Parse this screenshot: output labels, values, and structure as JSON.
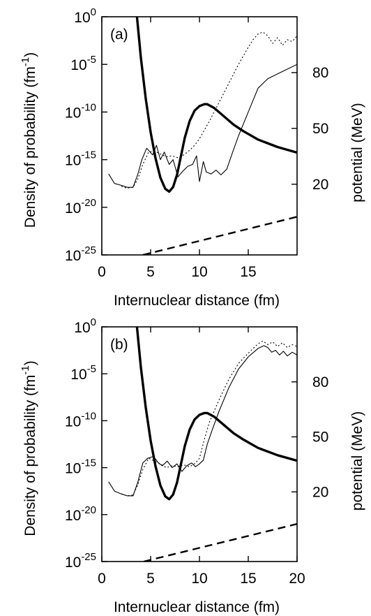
{
  "chart_data": [
    {
      "type": "line",
      "panel_label": "(a)",
      "xlabel": "Internuclear distance (fm)",
      "ylabel_left": "Density of probability (fm-1)",
      "ylabel_right": "potential (MeV)",
      "xlim": [
        0,
        20
      ],
      "ylim_left": [
        -25,
        0
      ],
      "ylim_right": [
        -18,
        110
      ],
      "y_left_scale": "log10",
      "x_ticks": [
        0,
        5,
        10,
        15
      ],
      "x_tick_labels": [
        "0",
        "5",
        "10",
        "15"
      ],
      "y_left_ticks": [
        0,
        -5,
        -10,
        -15,
        -20,
        -25
      ],
      "y_left_tick_labels": [
        {
          "base": "10",
          "exp": "0"
        },
        {
          "base": "10",
          "exp": "-5"
        },
        {
          "base": "10",
          "exp": "-10"
        },
        {
          "base": "10",
          "exp": "-15"
        },
        {
          "base": "10",
          "exp": "-20"
        },
        {
          "base": "10",
          "exp": "-25"
        }
      ],
      "y_right_ticks": [
        20,
        50,
        80
      ],
      "y_right_tick_labels": [
        "20",
        "50",
        "80"
      ],
      "series": [
        {
          "style": "thick",
          "axis": "right",
          "x": [
            3.6,
            4.0,
            4.5,
            5.0,
            5.5,
            6.0,
            6.5,
            6.9,
            7.3,
            7.7,
            8.1,
            8.5,
            9.0,
            9.5,
            10.0,
            10.5,
            10.8,
            11.5,
            12.5,
            13.5,
            14.5,
            16.0,
            18.0,
            20.0
          ],
          "y": [
            110,
            88,
            66,
            48,
            34,
            23.5,
            17.5,
            16,
            18.5,
            25,
            35,
            45,
            54,
            59.5,
            62,
            63,
            63,
            61,
            56.5,
            52,
            48.5,
            44,
            40,
            37
          ]
        },
        {
          "style": "thin",
          "axis": "left",
          "x": [
            0.7,
            1.3,
            2.0,
            2.6,
            3.2,
            3.7,
            4.1,
            4.6,
            5.2,
            5.6,
            6.0,
            6.4,
            6.9,
            7.3,
            7.8,
            8.3,
            8.8,
            9.3,
            9.7,
            10.0,
            10.4,
            10.7,
            11.2,
            11.7,
            12.2,
            12.8,
            13.3,
            14.0,
            15.0,
            16.0,
            17.0,
            18.0,
            19.0,
            20.0
          ],
          "y": [
            -16.5,
            -17.5,
            -17.7,
            -17.9,
            -17.9,
            -16.5,
            -15,
            -13.8,
            -14.5,
            -13.5,
            -15,
            -14.2,
            -15.5,
            -15,
            -16.8,
            -16.2,
            -15.7,
            -15.5,
            -14.6,
            -17.3,
            -15.2,
            -16.3,
            -16.5,
            -16.1,
            -16.6,
            -16,
            -14.5,
            -12.5,
            -10,
            -7.5,
            -6.5,
            -6,
            -5.5,
            -5
          ]
        },
        {
          "style": "dotted",
          "axis": "left",
          "x": [
            2.0,
            2.6,
            3.2,
            3.7,
            4.2,
            4.8,
            5.4,
            6.0,
            6.6,
            7.2,
            7.8,
            8.4,
            9.0,
            9.5,
            10.0,
            11.0,
            12.0,
            13.0,
            14.0,
            15.0,
            15.5,
            16.0,
            16.5,
            17.0,
            17.5,
            18.0,
            18.5,
            19.0,
            19.5,
            20.0
          ],
          "y": [
            -17.8,
            -18.0,
            -17.9,
            -17.0,
            -15.5,
            -14.2,
            -14.1,
            -14.4,
            -14.7,
            -14.6,
            -14.8,
            -14.5,
            -14.0,
            -13.5,
            -12.8,
            -11,
            -9,
            -7,
            -5,
            -3.2,
            -2.4,
            -1.8,
            -1.6,
            -2.0,
            -2.8,
            -2.2,
            -3.0,
            -2.4,
            -2.6,
            -2.0
          ]
        },
        {
          "style": "dashed",
          "axis": "left",
          "x": [
            4.2,
            20.0
          ],
          "y": [
            -25,
            -21
          ]
        }
      ]
    },
    {
      "type": "line",
      "panel_label": "(b)",
      "xlabel": "Internuclear distance (fm)",
      "ylabel_left": "Density of probability (fm-1)",
      "ylabel_right": "potential (MeV)",
      "xlim": [
        0,
        20
      ],
      "ylim_left": [
        -25,
        0
      ],
      "ylim_right": [
        -18,
        110
      ],
      "y_left_scale": "log10",
      "x_ticks": [
        0,
        5,
        10,
        15,
        20
      ],
      "x_tick_labels": [
        "0",
        "5",
        "10",
        "15",
        "20"
      ],
      "y_left_ticks": [
        0,
        -5,
        -10,
        -15,
        -20,
        -25
      ],
      "y_left_tick_labels": [
        {
          "base": "10",
          "exp": "0"
        },
        {
          "base": "10",
          "exp": "-5"
        },
        {
          "base": "10",
          "exp": "-10"
        },
        {
          "base": "10",
          "exp": "-15"
        },
        {
          "base": "10",
          "exp": "-20"
        },
        {
          "base": "10",
          "exp": "-25"
        }
      ],
      "y_right_ticks": [
        20,
        50,
        80
      ],
      "y_right_tick_labels": [
        "20",
        "50",
        "80"
      ],
      "series": [
        {
          "style": "thick",
          "axis": "right",
          "x": [
            3.6,
            4.0,
            4.5,
            5.0,
            5.5,
            6.0,
            6.5,
            6.9,
            7.3,
            7.7,
            8.1,
            8.5,
            9.0,
            9.5,
            10.0,
            10.5,
            10.8,
            11.5,
            12.5,
            13.5,
            14.5,
            16.0,
            18.0,
            20.0
          ],
          "y": [
            110,
            88,
            66,
            48,
            34,
            23.5,
            17.5,
            16,
            18.5,
            25,
            35,
            45,
            54,
            59.5,
            62,
            63,
            63,
            61,
            56.5,
            52,
            48.5,
            44,
            40,
            37
          ]
        },
        {
          "style": "thin",
          "axis": "left",
          "x": [
            0.7,
            1.3,
            2.0,
            2.6,
            3.2,
            3.7,
            4.2,
            4.7,
            5.3,
            5.8,
            6.2,
            6.7,
            7.2,
            7.7,
            8.2,
            8.7,
            9.2,
            9.6,
            10.0,
            10.4,
            10.8,
            11.3,
            12.0,
            13.0,
            14.0,
            15.0,
            16.0,
            16.6,
            17.0,
            17.4,
            17.8,
            18.2,
            18.6,
            19.0,
            19.5,
            20.0
          ],
          "y": [
            -16.5,
            -17.5,
            -17.8,
            -18.0,
            -18.0,
            -16.5,
            -14.5,
            -14.0,
            -13.8,
            -14.5,
            -14.8,
            -14.3,
            -15.0,
            -14.6,
            -15.4,
            -14.8,
            -14.5,
            -14.9,
            -14.6,
            -14.2,
            -12.5,
            -11,
            -9,
            -6.5,
            -4.5,
            -3.2,
            -2.3,
            -2.0,
            -2.2,
            -2.7,
            -2.5,
            -3.0,
            -2.6,
            -3.1,
            -2.7,
            -3.0
          ]
        },
        {
          "style": "dotted",
          "axis": "left",
          "x": [
            2.0,
            2.6,
            3.2,
            3.7,
            4.2,
            4.8,
            5.4,
            6.0,
            6.6,
            7.2,
            7.8,
            8.4,
            9.0,
            9.6,
            10.0,
            10.5,
            11.0,
            12.0,
            13.0,
            14.0,
            15.0,
            16.0,
            16.5,
            17.0,
            17.5,
            18.0,
            18.5,
            19.0,
            19.5,
            20.0
          ],
          "y": [
            -17.8,
            -18.0,
            -17.9,
            -16.8,
            -15.2,
            -14.0,
            -14.3,
            -14.6,
            -15.0,
            -14.8,
            -14.9,
            -14.7,
            -14.9,
            -14.5,
            -14.0,
            -12.0,
            -10.2,
            -7.8,
            -5.6,
            -3.9,
            -2.8,
            -1.8,
            -1.5,
            -1.9,
            -1.6,
            -2.1,
            -1.7,
            -2.2,
            -1.9,
            -2.1
          ]
        },
        {
          "style": "dashed",
          "axis": "left",
          "x": [
            4.3,
            20.0
          ],
          "y": [
            -25,
            -21
          ]
        }
      ]
    }
  ]
}
